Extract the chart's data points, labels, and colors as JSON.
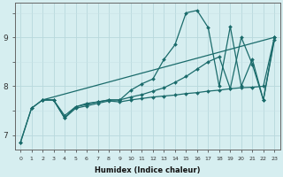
{
  "xlabel": "Humidex (Indice chaleur)",
  "bg_color": "#d6eef0",
  "grid_color": "#c8e0e4",
  "line_color": "#1a6b6b",
  "xlim": [
    -0.5,
    23.5
  ],
  "ylim": [
    6.7,
    9.7
  ],
  "xticks": [
    0,
    1,
    2,
    3,
    4,
    5,
    6,
    7,
    8,
    9,
    10,
    11,
    12,
    13,
    14,
    15,
    16,
    17,
    18,
    19,
    20,
    21,
    22,
    23
  ],
  "yticks": [
    7,
    8,
    9
  ],
  "series": [
    {
      "x": [
        0,
        1,
        2,
        3,
        4,
        5,
        6,
        7,
        8,
        9,
        10,
        11,
        12,
        13,
        14,
        15,
        16,
        17,
        18,
        19,
        20,
        21,
        22,
        23
      ],
      "y": [
        6.85,
        7.55,
        7.72,
        7.72,
        7.35,
        7.55,
        7.6,
        7.65,
        7.7,
        7.68,
        7.72,
        7.75,
        7.78,
        7.8,
        7.82,
        7.85,
        7.87,
        7.9,
        7.92,
        7.95,
        7.97,
        7.98,
        8.0,
        9.0
      ]
    },
    {
      "x": [
        2,
        3,
        4,
        5,
        6,
        7,
        8,
        9,
        10,
        11,
        12,
        13,
        14,
        15,
        16,
        17,
        18,
        19,
        20,
        21,
        22,
        23
      ],
      "y": [
        7.72,
        7.72,
        7.4,
        7.58,
        7.63,
        7.68,
        7.72,
        7.72,
        7.78,
        7.83,
        7.9,
        7.97,
        8.08,
        8.2,
        8.35,
        8.5,
        8.6,
        7.95,
        9.0,
        8.45,
        7.72,
        8.95
      ]
    },
    {
      "x": [
        0,
        1,
        2,
        3,
        4,
        5,
        6,
        7,
        8,
        9,
        10,
        11,
        12,
        13,
        14,
        15,
        16,
        17,
        18,
        19,
        20,
        21,
        22,
        23
      ],
      "y": [
        6.85,
        7.55,
        7.72,
        7.72,
        7.35,
        7.58,
        7.65,
        7.68,
        7.72,
        7.72,
        7.92,
        8.05,
        8.15,
        8.55,
        8.85,
        9.5,
        9.55,
        9.2,
        8.0,
        9.22,
        8.0,
        8.55,
        7.72,
        9.0
      ]
    },
    {
      "x": [
        2,
        23
      ],
      "y": [
        7.72,
        9.0
      ]
    }
  ]
}
